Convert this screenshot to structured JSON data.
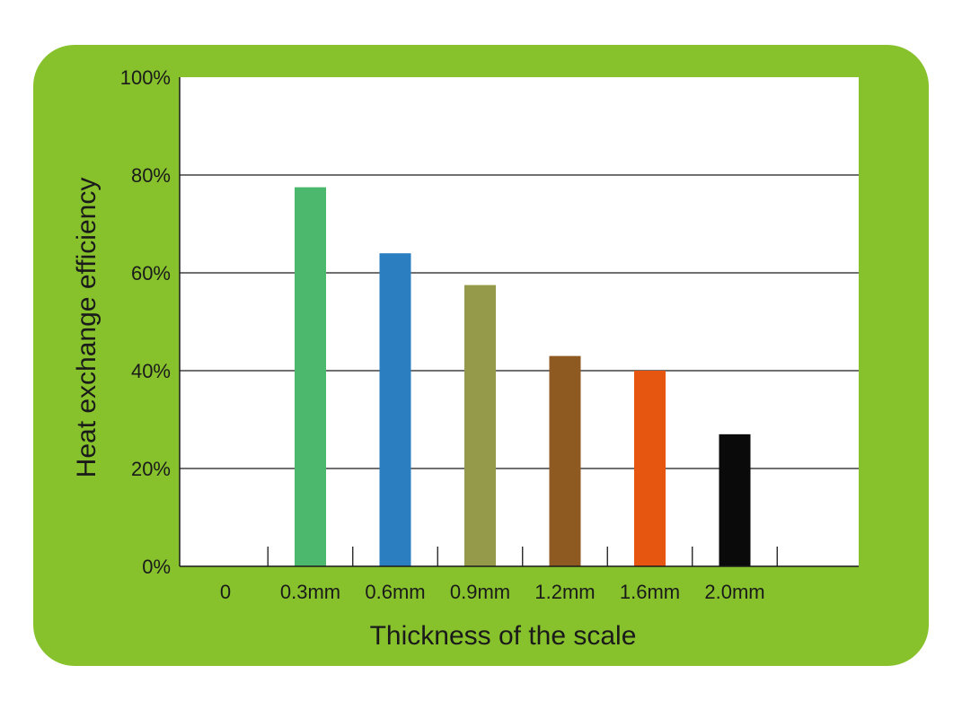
{
  "chart_data": {
    "type": "bar",
    "xlabel": "Thickness of the scale",
    "ylabel": "Heat exchange efficiency",
    "categories": [
      "0",
      "0.3mm",
      "0.6mm",
      "0.9mm",
      "1.2mm",
      "1.6mm",
      "2.0mm"
    ],
    "values": [
      null,
      77.5,
      64,
      57.5,
      43,
      40,
      27
    ],
    "bar_colors": [
      "#ffffff",
      "#4bb86e",
      "#2b7fc1",
      "#959a4a",
      "#8e5a22",
      "#e75611",
      "#0a0a0a"
    ],
    "ylim": [
      0,
      100
    ],
    "yticks": [
      0,
      20,
      40,
      60,
      80,
      100
    ],
    "ytick_labels": [
      "0%",
      "20%",
      "40%",
      "60%",
      "80%",
      "100%"
    ],
    "grid": true,
    "legend": "none"
  },
  "colors": {
    "card_background": "#87c22d",
    "plot_background": "#ffffff",
    "axis": "#1a1a1a",
    "gridline": "#1a1a1a"
  }
}
